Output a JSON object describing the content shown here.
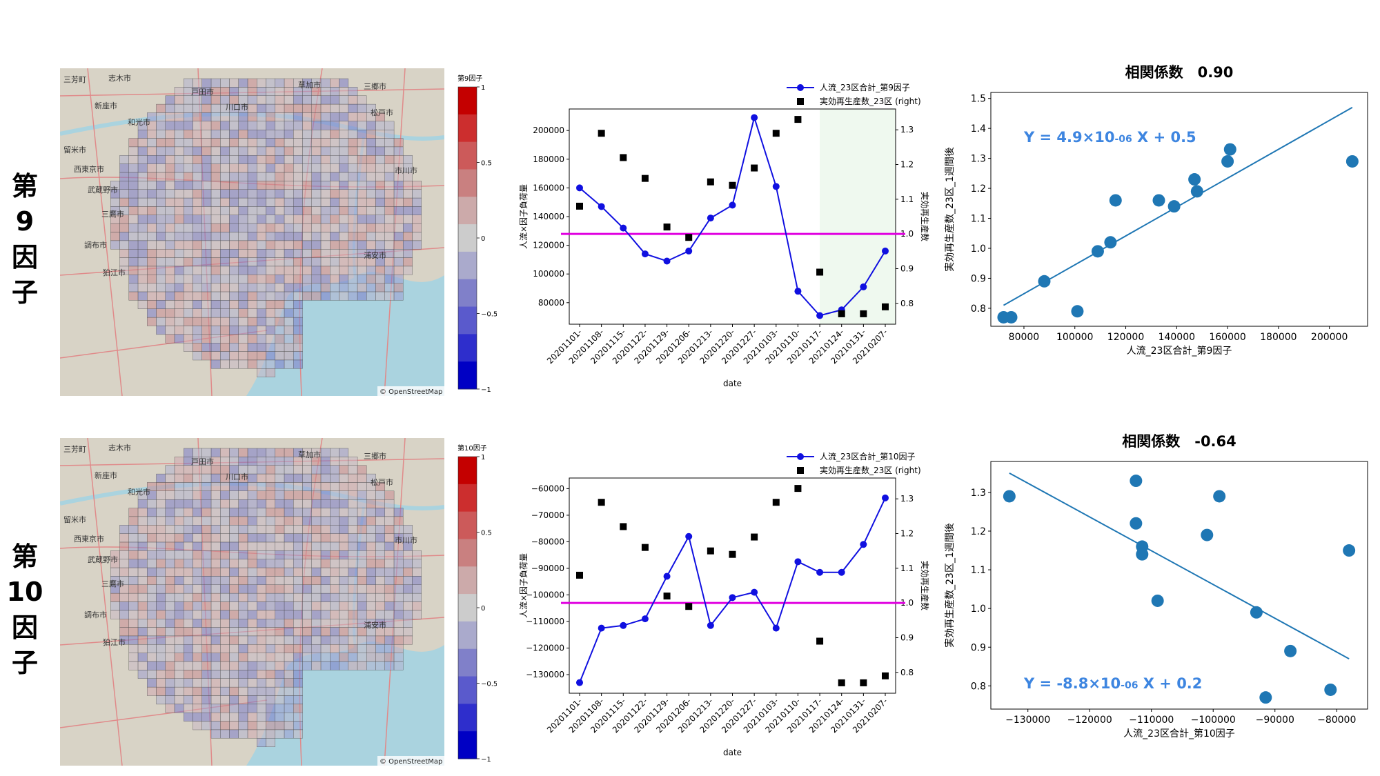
{
  "rows": [
    {
      "label_chars": [
        "第",
        "9",
        "因",
        "子"
      ],
      "map": {
        "place_names": [
          "三芳町",
          "志木市",
          "戸田市",
          "草加市",
          "三郷市",
          "新座市",
          "川口市",
          "和光市",
          "松戸市",
          "留米市",
          "市川市",
          "西東京市",
          "武蔵野市",
          "三鷹市",
          "調布市",
          "狛江市",
          "浦安市"
        ],
        "attribution": "© OpenStreetMap",
        "colorbar": {
          "title": "第9因子",
          "ticks": [
            "1",
            "0.5",
            "0",
            "−0.5",
            "−1"
          ]
        }
      },
      "timeseries": {
        "chart_data": {
          "type": "line",
          "x": [
            "20201101-",
            "20201108-",
            "20201115-",
            "20201122-",
            "20201129-",
            "20201206-",
            "20201213-",
            "20201220-",
            "20201227-",
            "20210103-",
            "20210110-",
            "20210117-",
            "20210124-",
            "20210131-",
            "20210207-"
          ],
          "series": [
            {
              "name": "人流_23区合計_第9因子",
              "axis": "left",
              "color": "#1010e0",
              "values": [
                160000,
                147000,
                132000,
                114000,
                109000,
                116000,
                139000,
                148000,
                209000,
                161000,
                88000,
                71000,
                75000,
                91000,
                116000
              ]
            },
            {
              "name": "実効再生産数_23区 (right)",
              "axis": "right",
              "color": "#000000",
              "values": [
                1.08,
                1.29,
                1.22,
                1.16,
                1.02,
                0.99,
                1.15,
                1.14,
                1.19,
                1.29,
                1.33,
                0.89,
                0.77,
                0.77,
                0.79
              ]
            }
          ],
          "reference_line_right": 1.0,
          "reference_color": "#e000e0",
          "shaded_from_index": 11,
          "xlabel": "date",
          "ylabel": "人流×因子負荷量",
          "ylabel_right": "実効再生産数",
          "ylim": [
            65000,
            215000
          ],
          "ylim_right": [
            0.74,
            1.36
          ],
          "yticks": [
            80000,
            100000,
            120000,
            140000,
            160000,
            180000,
            200000
          ],
          "ytick_labels": [
            "80000",
            "100000",
            "120000",
            "140000",
            "160000",
            "180000",
            "200000"
          ],
          "yticks_right": [
            0.8,
            0.9,
            1.0,
            1.1,
            1.2,
            1.3
          ],
          "ytick_labels_right": [
            "0.8",
            "0.9",
            "1.0",
            "1.1",
            "1.2",
            "1.3"
          ]
        }
      },
      "scatter": {
        "title": "相関係数　0.90",
        "equation_prefix": "Y = 4.9×10",
        "equation_exp": "-06",
        "equation_suffix": " X + 0.5",
        "chart_data": {
          "type": "scatter",
          "x": [
            72000,
            75000,
            88000,
            101000,
            109000,
            114000,
            116000,
            133000,
            139000,
            147000,
            148000,
            160000,
            161000,
            209000
          ],
          "y": [
            0.77,
            0.77,
            0.89,
            0.79,
            0.99,
            1.02,
            1.16,
            1.16,
            1.14,
            1.23,
            1.19,
            1.29,
            1.33,
            1.29
          ],
          "fit": {
            "x": [
              72000,
              209000
            ],
            "y": [
              0.81,
              1.47
            ]
          },
          "color": "#1f77b4",
          "xlabel": "人流_23区合計_第9因子",
          "ylabel": "実効再生産数_23区_1週間後",
          "xlim": [
            67000,
            215000
          ],
          "ylim": [
            0.74,
            1.52
          ],
          "xticks": [
            80000,
            100000,
            120000,
            140000,
            160000,
            180000,
            200000
          ],
          "xtick_labels": [
            "80000",
            "100000",
            "120000",
            "140000",
            "160000",
            "180000",
            "200000"
          ],
          "yticks": [
            0.8,
            0.9,
            1.0,
            1.1,
            1.2,
            1.3,
            1.4,
            1.5
          ],
          "ytick_labels": [
            "0.8",
            "0.9",
            "1.0",
            "1.1",
            "1.2",
            "1.3",
            "1.4",
            "1.5"
          ]
        }
      }
    },
    {
      "label_chars": [
        "第",
        "10",
        "因",
        "子"
      ],
      "map": {
        "place_names": [
          "三芳町",
          "志木市",
          "戸田市",
          "草加市",
          "三郷市",
          "新座市",
          "川口市",
          "和光市",
          "松戸市",
          "留米市",
          "市川市",
          "西東京市",
          "武蔵野市",
          "三鷹市",
          "調布市",
          "狛江市",
          "浦安市"
        ],
        "attribution": "© OpenStreetMap",
        "colorbar": {
          "title": "第10因子",
          "ticks": [
            "1",
            "0.5",
            "0",
            "−0.5",
            "−1"
          ]
        }
      },
      "timeseries": {
        "chart_data": {
          "type": "line",
          "x": [
            "20201101-",
            "20201108-",
            "20201115-",
            "20201122-",
            "20201129-",
            "20201206-",
            "20201213-",
            "20201220-",
            "20201227-",
            "20210103-",
            "20210110-",
            "20210117-",
            "20210124-",
            "20210131-",
            "20210207-"
          ],
          "series": [
            {
              "name": "人流_23区合計_第10因子",
              "axis": "left",
              "color": "#1010e0",
              "values": [
                -133000,
                -112500,
                -111500,
                -109000,
                -93000,
                -78000,
                -111500,
                -101000,
                -99000,
                -112500,
                -87500,
                -91500,
                -91500,
                -81000,
                -63500
              ]
            },
            {
              "name": "実効再生産数_23区 (right)",
              "axis": "right",
              "color": "#000000",
              "values": [
                1.08,
                1.29,
                1.22,
                1.16,
                1.02,
                0.99,
                1.15,
                1.14,
                1.19,
                1.29,
                1.33,
                0.89,
                0.77,
                0.77,
                0.79
              ]
            }
          ],
          "reference_line_right": 1.0,
          "reference_color": "#e000e0",
          "xlabel": "date",
          "ylabel": "人流×因子負荷量",
          "ylabel_right": "実効再生産数",
          "ylim": [
            -137000,
            -56000
          ],
          "ylim_right": [
            0.74,
            1.36
          ],
          "yticks": [
            -130000,
            -120000,
            -110000,
            -100000,
            -90000,
            -80000,
            -70000,
            -60000
          ],
          "ytick_labels": [
            "−130000",
            "−120000",
            "−110000",
            "−100000",
            "−90000",
            "−80000",
            "−70000",
            "−60000"
          ],
          "yticks_right": [
            0.8,
            0.9,
            1.0,
            1.1,
            1.2,
            1.3
          ],
          "ytick_labels_right": [
            "0.8",
            "0.9",
            "1.0",
            "1.1",
            "1.2",
            "1.3"
          ]
        }
      },
      "scatter": {
        "title": "相関係数　-0.64",
        "equation_prefix": "Y = -8.8×10",
        "equation_exp": "-06",
        "equation_suffix": " X + 0.2",
        "chart_data": {
          "type": "scatter",
          "x": [
            -133000,
            -112500,
            -112500,
            -111500,
            -111500,
            -109000,
            -101000,
            -99000,
            -93000,
            -91500,
            -87500,
            -81000,
            -78000
          ],
          "y": [
            1.29,
            1.33,
            1.22,
            1.16,
            1.14,
            1.02,
            1.19,
            1.29,
            0.99,
            0.77,
            0.89,
            0.79,
            1.15
          ],
          "fit": {
            "x": [
              -133000,
              -78000
            ],
            "y": [
              1.35,
              0.87
            ]
          },
          "color": "#1f77b4",
          "xlabel": "人流_23区合計_第10因子",
          "ylabel": "実効再生産数_23区_1週間後",
          "xlim": [
            -136000,
            -75000
          ],
          "ylim": [
            0.74,
            1.38
          ],
          "xticks": [
            -130000,
            -120000,
            -110000,
            -100000,
            -90000,
            -80000
          ],
          "xtick_labels": [
            "−130000",
            "−120000",
            "−110000",
            "−100000",
            "−90000",
            "−80000"
          ],
          "yticks": [
            0.8,
            0.9,
            1.0,
            1.1,
            1.2,
            1.3
          ],
          "ytick_labels": [
            "0.8",
            "0.9",
            "1.0",
            "1.1",
            "1.2",
            "1.3"
          ]
        }
      }
    }
  ]
}
